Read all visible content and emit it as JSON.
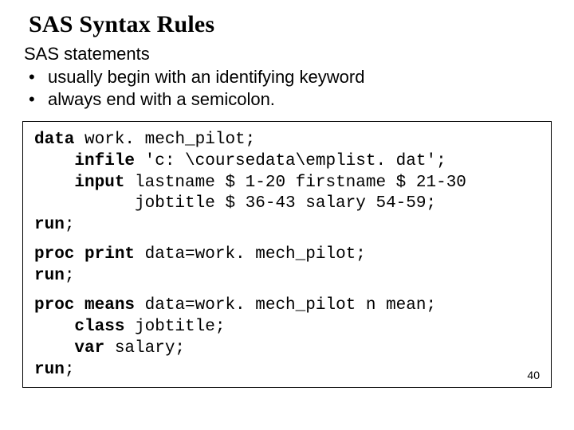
{
  "title": "SAS Syntax Rules",
  "intro": "SAS statements",
  "bullets": [
    "usually begin with an identifying keyword",
    "always end with a semicolon."
  ],
  "code": {
    "block1": {
      "l1_kw": "data",
      "l1_rest": " work. mech_pilot;",
      "l2_kw": "    infile",
      "l2_rest": " 'c: \\coursedata\\emplist. dat';",
      "l3_kw": "    input",
      "l3_rest": " lastname $ 1-20 firstname $ 21-30",
      "l4": "          jobtitle $ 36-43 salary 54-59;",
      "l5_kw": "run",
      "l5_rest": ";"
    },
    "block2": {
      "l1_kw": "proc print",
      "l1_rest": " data=work. mech_pilot;",
      "l2_kw": "run",
      "l2_rest": ";"
    },
    "block3": {
      "l1_kw": "proc means",
      "l1_rest": " data=work. mech_pilot n mean;",
      "l2_kw": "    class",
      "l2_rest": " jobtitle;",
      "l3_kw": "    var",
      "l3_rest": " salary;",
      "l4_kw": "run",
      "l4_rest": ";"
    }
  },
  "page_number": "40",
  "colors": {
    "background": "#ffffff",
    "text": "#000000",
    "border": "#000000"
  },
  "fonts": {
    "title_family": "Georgia, Times New Roman, serif",
    "body_family": "Verdana, Geneva, sans-serif",
    "code_family": "Courier New, monospace",
    "title_size_pt": 30,
    "body_size_pt": 22,
    "code_size_pt": 21
  }
}
